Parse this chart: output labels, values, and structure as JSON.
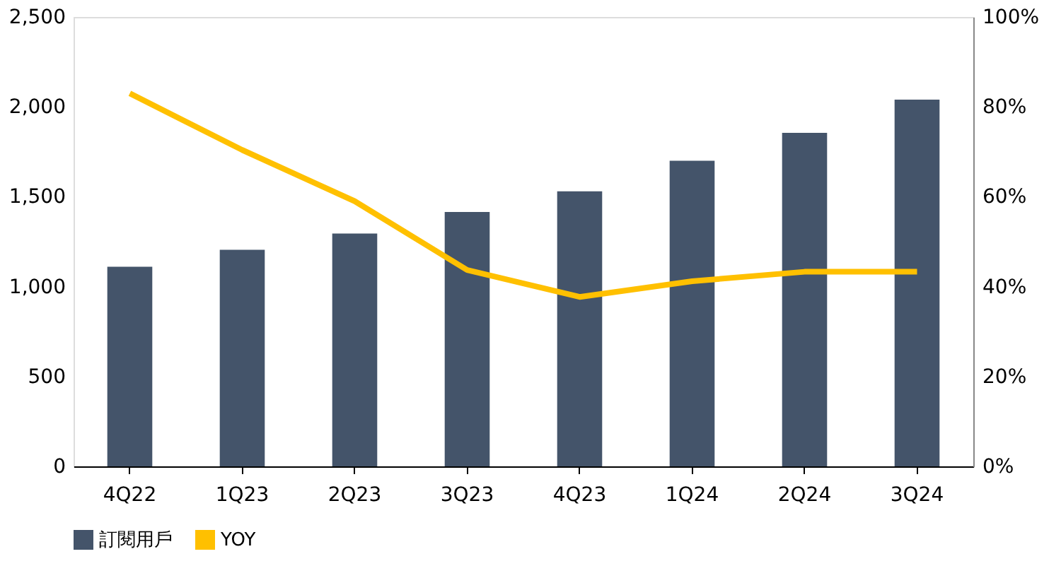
{
  "chart_data": {
    "type": "bar",
    "categories": [
      "4Q22",
      "1Q23",
      "2Q23",
      "3Q23",
      "4Q23",
      "1Q24",
      "2Q24",
      "3Q24"
    ],
    "series": [
      {
        "name": "訂閱用戶",
        "color": "#44546a",
        "values": [
          1110,
          1205,
          1295,
          1415,
          1530,
          1700,
          1855,
          2040
        ]
      },
      {
        "name": "YOY",
        "type": "line",
        "axis": "y2",
        "color": "#ffc000",
        "values": [
          83,
          70.4,
          59,
          43.7,
          37.7,
          41.2,
          43.3,
          43.3
        ]
      }
    ],
    "ylim": [
      0,
      2500
    ],
    "yticks": [
      {
        "value": 0,
        "label": "0"
      },
      {
        "value": 500,
        "label": "500"
      },
      {
        "value": 1000,
        "label": "1,000"
      },
      {
        "value": 1500,
        "label": "1,500"
      },
      {
        "value": 2000,
        "label": "2,000"
      },
      {
        "value": 2500,
        "label": "2,500"
      }
    ],
    "y2lim": [
      0,
      100
    ],
    "y2ticks": [
      {
        "value": 0,
        "label": "0%"
      },
      {
        "value": 20,
        "label": "20%"
      },
      {
        "value": 40,
        "label": "40%"
      },
      {
        "value": 60,
        "label": "60%"
      },
      {
        "value": 80,
        "label": "80%"
      },
      {
        "value": 100,
        "label": "100%"
      }
    ],
    "grid": false,
    "legend": "bottom",
    "marker": "none"
  }
}
